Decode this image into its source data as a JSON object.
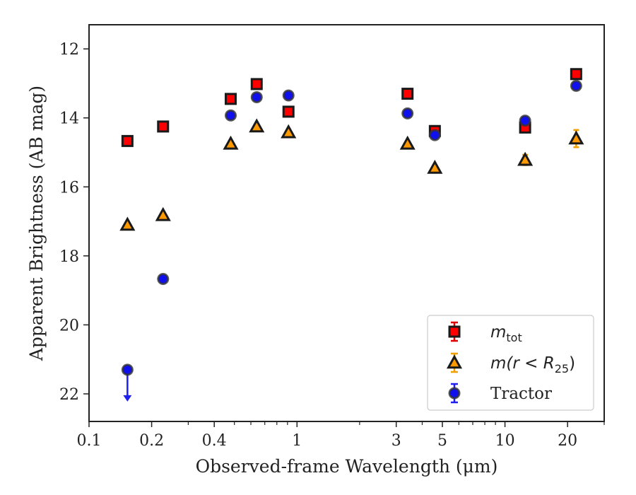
{
  "chart_data": {
    "type": "scatter",
    "title": "",
    "xlabel": "Observed-frame Wavelength (μm)",
    "ylabel": "Apparent Brightness (AB mag)",
    "xscale": "log",
    "xlim": [
      0.1,
      30
    ],
    "ylim": [
      22.8,
      11.3
    ],
    "y_inverted": true,
    "grid": false,
    "legend_position": "lower right",
    "x_ticks": [
      {
        "value": 0.1,
        "label": "0.1"
      },
      {
        "value": 0.2,
        "label": "0.2"
      },
      {
        "value": 0.4,
        "label": "0.4"
      },
      {
        "value": 1,
        "label": "1"
      },
      {
        "value": 3,
        "label": "3"
      },
      {
        "value": 5,
        "label": "5"
      },
      {
        "value": 10,
        "label": "10"
      },
      {
        "value": 20,
        "label": "20"
      }
    ],
    "y_ticks": [
      {
        "value": 12,
        "label": "12"
      },
      {
        "value": 14,
        "label": "14"
      },
      {
        "value": 16,
        "label": "16"
      },
      {
        "value": 18,
        "label": "18"
      },
      {
        "value": 20,
        "label": "20"
      },
      {
        "value": 22,
        "label": "22"
      }
    ],
    "series": [
      {
        "legend": {
          "base": "m",
          "sub": "tot"
        },
        "marker": "square",
        "color": "#ff0000",
        "errcolor": "#dd0000",
        "points": [
          {
            "x": 0.153,
            "y": 14.67,
            "err": 0.05
          },
          {
            "x": 0.227,
            "y": 14.25,
            "err": 0.05
          },
          {
            "x": 0.48,
            "y": 13.45,
            "err": 0.05
          },
          {
            "x": 0.64,
            "y": 13.02,
            "err": 0.05
          },
          {
            "x": 0.91,
            "y": 13.82,
            "err": 0.05
          },
          {
            "x": 3.4,
            "y": 13.3,
            "err": 0.05
          },
          {
            "x": 4.6,
            "y": 14.38,
            "err": 0.08
          },
          {
            "x": 12.5,
            "y": 14.28,
            "err": 0.1
          },
          {
            "x": 22.0,
            "y": 12.73,
            "err": 0.1
          }
        ]
      },
      {
        "legend": {
          "prefix": "m(r < R",
          "sub": "25",
          "suffix": ")"
        },
        "marker": "triangle",
        "color": "#ff9900",
        "errcolor": "#f0a000",
        "points": [
          {
            "x": 0.153,
            "y": 17.1,
            "err": 0.05
          },
          {
            "x": 0.227,
            "y": 16.82,
            "err": 0.05
          },
          {
            "x": 0.48,
            "y": 14.75,
            "err": 0.05
          },
          {
            "x": 0.64,
            "y": 14.25,
            "err": 0.05
          },
          {
            "x": 0.91,
            "y": 14.42,
            "err": 0.05
          },
          {
            "x": 3.4,
            "y": 14.75,
            "err": 0.05
          },
          {
            "x": 4.6,
            "y": 15.45,
            "err": 0.05
          },
          {
            "x": 12.5,
            "y": 15.22,
            "err": 0.15
          },
          {
            "x": 22.0,
            "y": 14.6,
            "err": 0.25
          }
        ]
      },
      {
        "legend": {
          "text": "Tractor"
        },
        "marker": "circle",
        "color": "#1010ee",
        "errcolor": "#2020ee",
        "points": [
          {
            "x": 0.153,
            "y": 21.3,
            "upper_limit": true
          },
          {
            "x": 0.227,
            "y": 18.67,
            "err": 0.05
          },
          {
            "x": 0.48,
            "y": 13.93,
            "err": 0.05
          },
          {
            "x": 0.64,
            "y": 13.4,
            "err": 0.05
          },
          {
            "x": 0.91,
            "y": 13.35,
            "err": 0.05
          },
          {
            "x": 3.4,
            "y": 13.87,
            "err": 0.05
          },
          {
            "x": 4.6,
            "y": 14.5,
            "err": 0.05
          },
          {
            "x": 12.5,
            "y": 14.08,
            "err": 0.1
          },
          {
            "x": 22.0,
            "y": 13.07,
            "err": 0.1
          }
        ]
      }
    ]
  }
}
